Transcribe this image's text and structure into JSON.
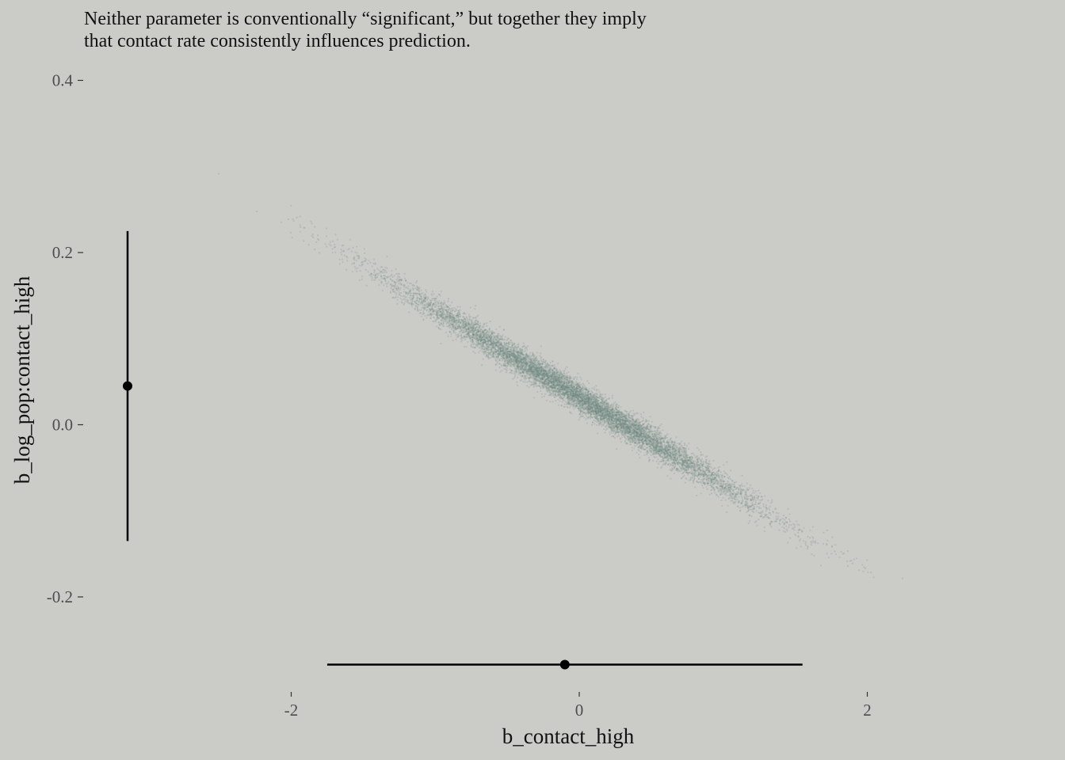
{
  "subtitle": {
    "line1": "Neither parameter is conventionally “significant,” but together they imply",
    "line2": "that contact rate consistently influences prediction."
  },
  "chart_data": {
    "type": "scatter",
    "title": "",
    "xlabel": "b_contact_high",
    "ylabel": "b_log_pop:contact_high",
    "xlim": [
      -3.14,
      3.0
    ],
    "ylim": [
      -0.28,
      0.4
    ],
    "x_ticks": [
      -2,
      0,
      2
    ],
    "x_tick_labels": [
      "-2",
      "0",
      "2"
    ],
    "y_ticks": [
      -0.2,
      0.0,
      0.2,
      0.4
    ],
    "y_tick_labels": [
      "-0.2",
      "0.0",
      "0.2",
      "0.4"
    ],
    "grid": false,
    "legend": "none",
    "point_color": "#6e8a80",
    "interval_color": "#000000",
    "scatter_model": {
      "description_points": "posterior draws, strong negative correlation",
      "n": 10000,
      "x_mean": 0.0,
      "x_sd": 0.62,
      "slope": -0.102,
      "intercept": 0.032,
      "resid_sd": 0.0085
    },
    "marginal_x_interval": {
      "median": -0.1,
      "lower": -1.75,
      "upper": 1.55
    },
    "marginal_y_interval": {
      "median": 0.045,
      "lower": -0.135,
      "upper": 0.225
    }
  }
}
